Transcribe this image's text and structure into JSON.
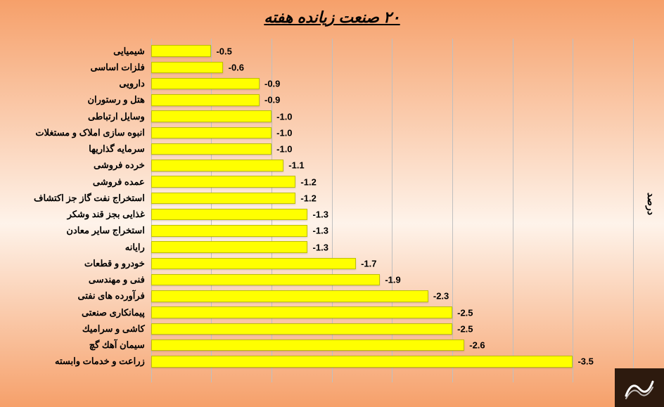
{
  "chart": {
    "type": "bar-horizontal-negative",
    "title": "۲۰ صنعت زیانده هفته",
    "ylabel": "درصد",
    "background_gradient": [
      "#f6a06a",
      "#fef3ea",
      "#f6a06a"
    ],
    "bar_color": "#ffff00",
    "bar_border_color": "#bfbf00",
    "grid_color": "#bfbfbf",
    "title_fontsize": 22,
    "label_fontsize": 13,
    "value_fontsize": 13,
    "xlim": [
      -4.0,
      0.0
    ],
    "xtick_step": 0.5,
    "grid_count": 8,
    "bars": [
      {
        "category": "شیمیایی",
        "value": -0.5,
        "label": "-0.5"
      },
      {
        "category": "فلزات اساسی",
        "value": -0.6,
        "label": "-0.6"
      },
      {
        "category": "دارویی",
        "value": -0.9,
        "label": "-0.9"
      },
      {
        "category": "هتل و رستوران",
        "value": -0.9,
        "label": "-0.9"
      },
      {
        "category": "وسایل ارتباطی",
        "value": -1.0,
        "label": "-1.0"
      },
      {
        "category": "انبوه سازی املاک و مستغلات",
        "value": -1.0,
        "label": "-1.0"
      },
      {
        "category": "سرمایه گذاریها",
        "value": -1.0,
        "label": "-1.0"
      },
      {
        "category": "خرده فروشی",
        "value": -1.1,
        "label": "-1.1"
      },
      {
        "category": "عمده فروشی",
        "value": -1.2,
        "label": "-1.2"
      },
      {
        "category": "استخراج نفت گاز جز اکتشاف",
        "value": -1.2,
        "label": "-1.2"
      },
      {
        "category": "غذایی بجز قند وشکر",
        "value": -1.3,
        "label": "-1.3"
      },
      {
        "category": "استخراج سایر معادن",
        "value": -1.3,
        "label": "-1.3"
      },
      {
        "category": "رایانه",
        "value": -1.3,
        "label": "-1.3"
      },
      {
        "category": "خودرو و قطعات",
        "value": -1.7,
        "label": "-1.7"
      },
      {
        "category": "فنی و مهندسی",
        "value": -1.9,
        "label": "-1.9"
      },
      {
        "category": "فرآورده های نفتی",
        "value": -2.3,
        "label": "-2.3"
      },
      {
        "category": "پیمانکاری صنعتی",
        "value": -2.5,
        "label": "-2.5"
      },
      {
        "category": "کاشی و سرامیك",
        "value": -2.5,
        "label": "-2.5"
      },
      {
        "category": "سیمان آهك گچ",
        "value": -2.6,
        "label": "-2.6"
      },
      {
        "category": "زراعت و خدمات وابسته",
        "value": -3.5,
        "label": "-3.5"
      }
    ]
  },
  "logo": {
    "bg_color": "#2d1a0e",
    "stroke_color": "#ffffff"
  }
}
